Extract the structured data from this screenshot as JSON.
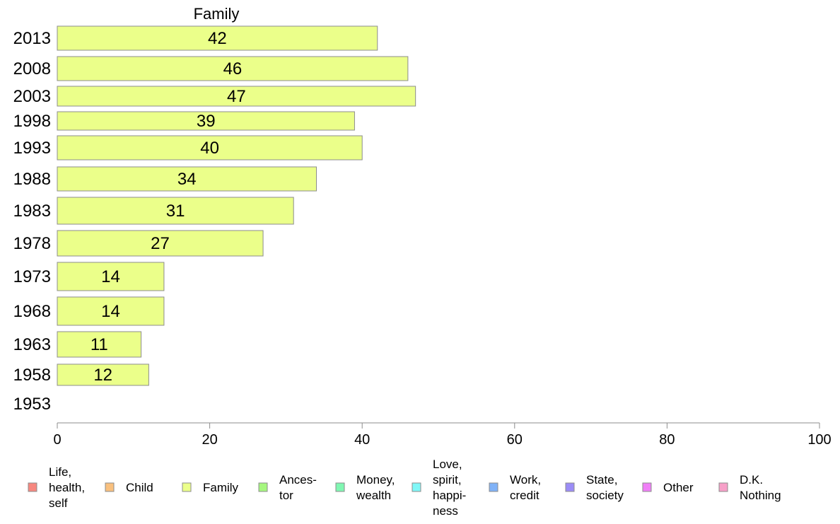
{
  "chart_data": {
    "type": "bar",
    "orientation": "horizontal",
    "title": "Family",
    "categories": [
      "2013",
      "2008",
      "2003",
      "1998",
      "1993",
      "1988",
      "1983",
      "1978",
      "1973",
      "1968",
      "1963",
      "1958",
      "1953"
    ],
    "series": [
      {
        "name": "Family",
        "values": [
          42,
          46,
          47,
          39,
          40,
          34,
          31,
          27,
          14,
          14,
          11,
          12,
          null
        ],
        "data_labels": [
          "42",
          "46",
          "47",
          "39",
          "40",
          "34",
          "31",
          "27",
          "14",
          "14",
          "11",
          "12",
          ""
        ],
        "color": "#ebff8a"
      }
    ],
    "xlim": [
      0,
      100
    ],
    "xticks": [
      "0",
      "20",
      "40",
      "60",
      "80",
      "100"
    ],
    "grid": false,
    "legend_position": "bottom",
    "legend": [
      {
        "label": "Life,\nhealth,\nself",
        "color": "#f7877f"
      },
      {
        "label": "Child",
        "color": "#f9c07e"
      },
      {
        "label": "Family",
        "color": "#ebff8a"
      },
      {
        "label": "Ances-\ntor",
        "color": "#a6f77f"
      },
      {
        "label": "Money,\nwealth",
        "color": "#80f7b2"
      },
      {
        "label": "Love,\nspirit,\nhappi-\nness",
        "color": "#80f7f7"
      },
      {
        "label": "Work,\ncredit",
        "color": "#80b2f7"
      },
      {
        "label": "State,\nsociety",
        "color": "#9b8cf7"
      },
      {
        "label": "Other",
        "color": "#f07ff7"
      },
      {
        "label": "D.K.\nNothing",
        "color": "#f7a0c8"
      }
    ]
  }
}
